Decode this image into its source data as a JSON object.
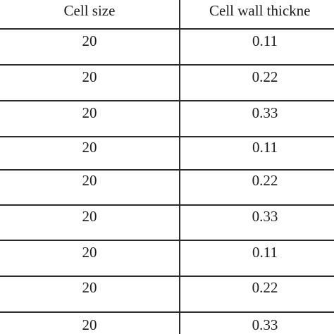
{
  "table": {
    "headers": [
      "Cell size",
      "Cell wall thickne"
    ],
    "rows": [
      [
        "20",
        "0.11"
      ],
      [
        "20",
        "0.22"
      ],
      [
        "20",
        "0.33"
      ],
      [
        "20",
        "0.11"
      ],
      [
        "20",
        "0.22"
      ],
      [
        "20",
        "0.33"
      ],
      [
        "20",
        "0.11"
      ],
      [
        "20",
        "0.22"
      ],
      [
        "20",
        "0.33"
      ]
    ]
  }
}
